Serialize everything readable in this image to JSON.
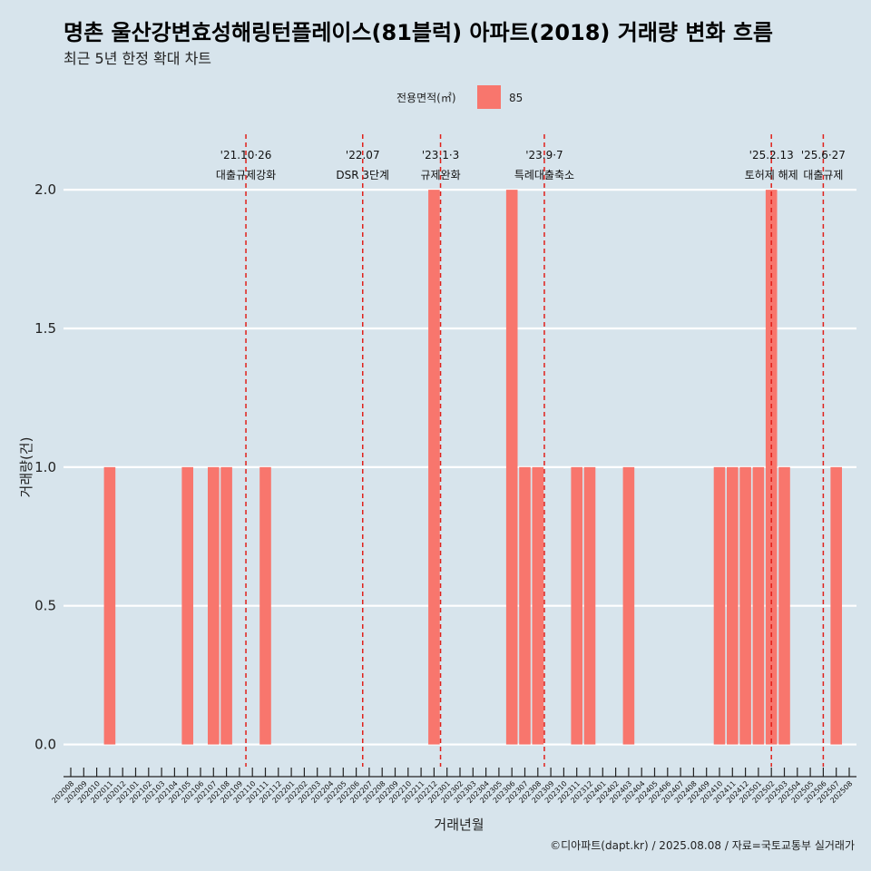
{
  "title": "명촌 울산강변효성해링턴플레이스(81블럭) 아파트(2018) 거래량 변화 흐름",
  "subtitle": "최근 5년 한정 확대 차트",
  "caption": "©디아파트(dapt.kr) / 2025.08.08 / 자료=국토교통부 실거래가",
  "colors": {
    "background": "#d7e4ec",
    "bar": "#f8766d",
    "gridline": "#ffffff",
    "vline": "#e0201a"
  },
  "chart_data": {
    "type": "bar",
    "xlabel": "거래년월",
    "ylabel": "거래량(건)",
    "ylim": [
      -0.08,
      2.2
    ],
    "yticks": [
      0.0,
      0.5,
      1.0,
      1.5,
      2.0
    ],
    "ytick_labels": [
      "0.0",
      "0.5",
      "1.0",
      "1.5",
      "2.0"
    ],
    "grid": true,
    "legend": {
      "title": "전용면적(㎡)",
      "position": "top",
      "entries": [
        {
          "label": "85",
          "color": "#f8766d"
        }
      ]
    },
    "categories": [
      "202008",
      "202009",
      "202010",
      "202011",
      "202012",
      "202101",
      "202102",
      "202103",
      "202104",
      "202105",
      "202106",
      "202107",
      "202108",
      "202109",
      "202110",
      "202111",
      "202112",
      "202201",
      "202202",
      "202203",
      "202204",
      "202205",
      "202206",
      "202207",
      "202208",
      "202209",
      "202210",
      "202211",
      "202212",
      "202301",
      "202302",
      "202303",
      "202304",
      "202305",
      "202306",
      "202307",
      "202308",
      "202309",
      "202310",
      "202311",
      "202312",
      "202401",
      "202402",
      "202403",
      "202404",
      "202405",
      "202406",
      "202407",
      "202408",
      "202409",
      "202410",
      "202411",
      "202412",
      "202501",
      "202502",
      "202503",
      "202504",
      "202505",
      "202506",
      "202507",
      "202508"
    ],
    "series": [
      {
        "name": "85",
        "values": [
          0,
          0,
          0,
          1,
          0,
          0,
          0,
          0,
          0,
          1,
          0,
          1,
          1,
          0,
          0,
          1,
          0,
          0,
          0,
          0,
          0,
          0,
          0,
          0,
          0,
          0,
          0,
          0,
          2,
          0,
          0,
          0,
          0,
          0,
          2,
          1,
          1,
          0,
          0,
          1,
          1,
          0,
          0,
          1,
          0,
          0,
          0,
          0,
          0,
          0,
          1,
          1,
          1,
          1,
          2,
          1,
          0,
          0,
          0,
          1,
          0
        ]
      }
    ],
    "annotations": [
      {
        "x": 13.5,
        "line1": "'21.10·26",
        "line2": "대출규제강화"
      },
      {
        "x": 22.5,
        "line1": "'22.07",
        "line2": "DSR 3단계"
      },
      {
        "x": 28.5,
        "line1": "'23.1·3",
        "line2": "규제완화"
      },
      {
        "x": 36.5,
        "line1": "'23.9·7",
        "line2": "특례대출축소"
      },
      {
        "x": 54.0,
        "line1": "'25.2.13",
        "line2": "토허제 해제"
      },
      {
        "x": 58.0,
        "line1": "'25.6·27",
        "line2": "대출규제"
      }
    ]
  }
}
